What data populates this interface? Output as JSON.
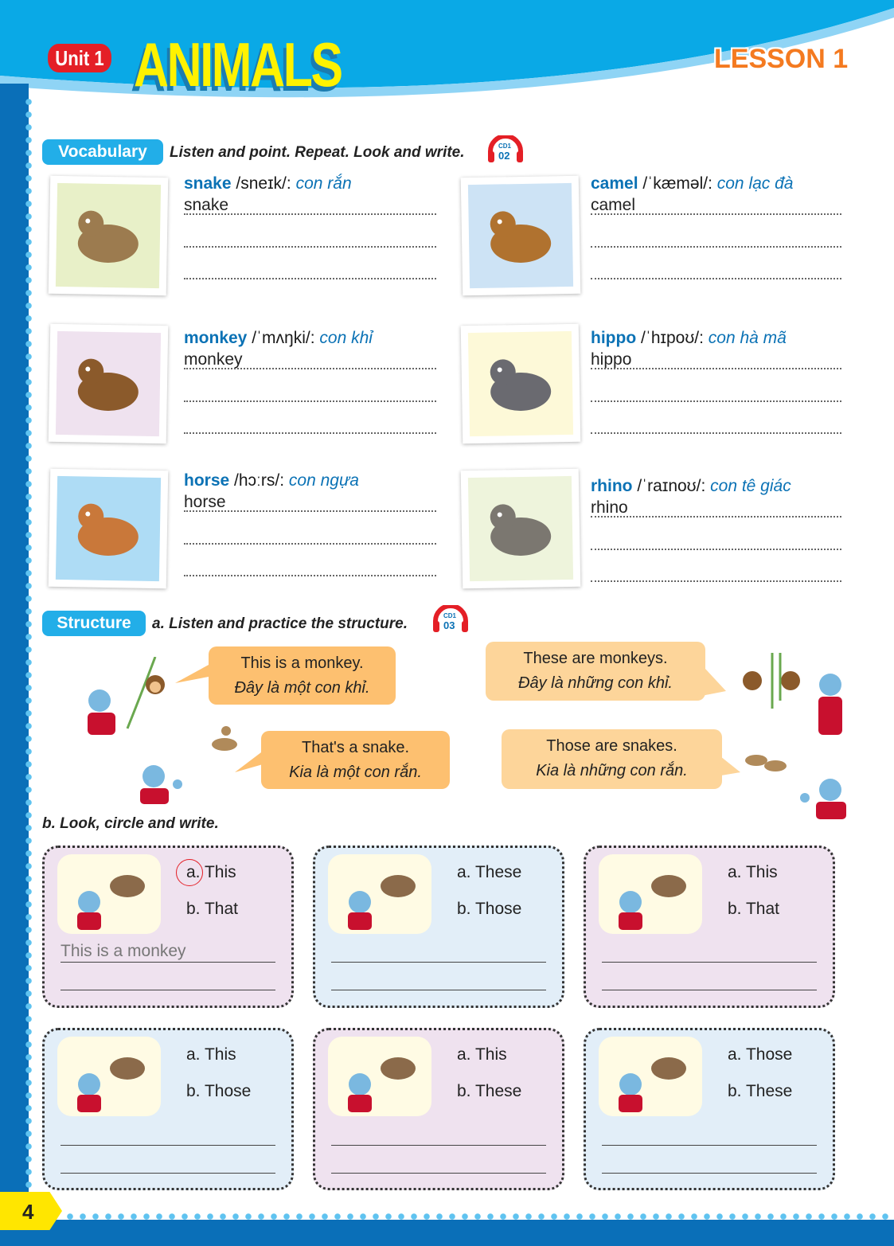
{
  "header": {
    "unit": "Unit 1",
    "title": "ANIMALS",
    "lesson": "LESSON 1"
  },
  "vocabulary": {
    "label": "Vocabulary",
    "instruction": "Listen and point. Repeat. Look and write.",
    "cd": {
      "disc": "CD1",
      "track": "02"
    },
    "items": [
      {
        "word": "snake",
        "ipa": "/sneɪk/:",
        "meaning": "con rắn",
        "answer": "snake",
        "bg": "#e8f0c8"
      },
      {
        "word": "camel",
        "ipa": "/ˈkæməl/:",
        "meaning": "con lạc đà",
        "answer": "camel",
        "bg": "#cde3f5"
      },
      {
        "word": "monkey",
        "ipa": "/ˈmʌŋki/:",
        "meaning": "con khỉ",
        "answer": "monkey",
        "bg": "#efe2ef"
      },
      {
        "word": "hippo",
        "ipa": "/ˈhɪpoʊ/:",
        "meaning": "con hà mã",
        "answer": "hippo",
        "bg": "#fdf9d8"
      },
      {
        "word": "horse",
        "ipa": "/hɔːrs/:",
        "meaning": "con ngựa",
        "answer": "horse",
        "bg": "#aedcf5"
      },
      {
        "word": "rhino",
        "ipa": "/ˈraɪnoʊ/:",
        "meaning": "con tê giác",
        "answer": "rhino",
        "bg": "#eef4dc"
      }
    ]
  },
  "structure": {
    "label": "Structure",
    "instruction": "a. Listen and practice the structure.",
    "cd": {
      "disc": "CD1",
      "track": "03"
    },
    "bubbles": [
      {
        "en": "This is a monkey.",
        "vi": "Đây là một con khỉ."
      },
      {
        "en": "These are monkeys.",
        "vi": "Đây là những con khỉ."
      },
      {
        "en": "That's a snake.",
        "vi": "Kia là một con rắn."
      },
      {
        "en": "Those are snakes.",
        "vi": "Kia là những con rắn."
      }
    ]
  },
  "exercise_b": {
    "instruction": "b. Look, circle and write.",
    "items": [
      {
        "a": "a. This",
        "b": "b. That",
        "answer": "This is a monkey",
        "circled": "a"
      },
      {
        "a": "a. These",
        "b": "b. Those",
        "answer": ""
      },
      {
        "a": "a. This",
        "b": "b. That",
        "answer": ""
      },
      {
        "a": "a. This",
        "b": "b. Those",
        "answer": ""
      },
      {
        "a": "a. This",
        "b": "b. These",
        "answer": ""
      },
      {
        "a": "a. Those",
        "b": "b. These",
        "answer": ""
      }
    ]
  },
  "page_number": "4"
}
